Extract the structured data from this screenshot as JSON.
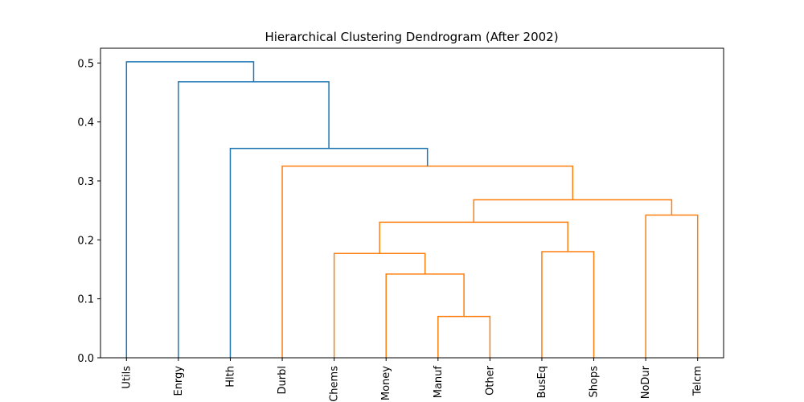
{
  "chart_data": {
    "type": "dendrogram",
    "title": "Hierarchical Clustering Dendrogram (After 2002)",
    "xlabel": "",
    "ylabel": "",
    "ylim": [
      0,
      0.525
    ],
    "yticks": [
      0.0,
      0.1,
      0.2,
      0.3,
      0.4,
      0.5
    ],
    "ytick_labels": [
      "0.0",
      "0.1",
      "0.2",
      "0.3",
      "0.4",
      "0.5"
    ],
    "leaves": [
      "Utils",
      "Enrgy",
      "Hlth",
      "Durbl",
      "Chems",
      "Money",
      "Manuf",
      "Other",
      "BusEq",
      "Shops",
      "NoDur",
      "Telcm"
    ],
    "colors": {
      "above_threshold": "#1f77b4",
      "cluster": "#ff7f0e"
    },
    "merges": [
      {
        "id": "c1",
        "left": "Manuf",
        "right": "Other",
        "height": 0.07,
        "color": "cluster"
      },
      {
        "id": "c2",
        "left": "Money",
        "right": "c1",
        "height": 0.142,
        "color": "cluster"
      },
      {
        "id": "c3",
        "left": "Chems",
        "right": "c2",
        "height": 0.177,
        "color": "cluster"
      },
      {
        "id": "c4",
        "left": "BusEq",
        "right": "Shops",
        "height": 0.18,
        "color": "cluster"
      },
      {
        "id": "c5",
        "left": "c3",
        "right": "c4",
        "height": 0.23,
        "color": "cluster"
      },
      {
        "id": "c6",
        "left": "NoDur",
        "right": "Telcm",
        "height": 0.242,
        "color": "cluster"
      },
      {
        "id": "c7",
        "left": "c5",
        "right": "c6",
        "height": 0.268,
        "color": "cluster"
      },
      {
        "id": "c8",
        "left": "Durbl",
        "right": "c7",
        "height": 0.325,
        "color": "cluster"
      },
      {
        "id": "c9",
        "left": "Hlth",
        "right": "c8",
        "height": 0.355,
        "color": "above_threshold"
      },
      {
        "id": "c10",
        "left": "Enrgy",
        "right": "c9",
        "height": 0.468,
        "color": "above_threshold"
      },
      {
        "id": "c11",
        "left": "Utils",
        "right": "c10",
        "height": 0.502,
        "color": "above_threshold"
      }
    ]
  }
}
